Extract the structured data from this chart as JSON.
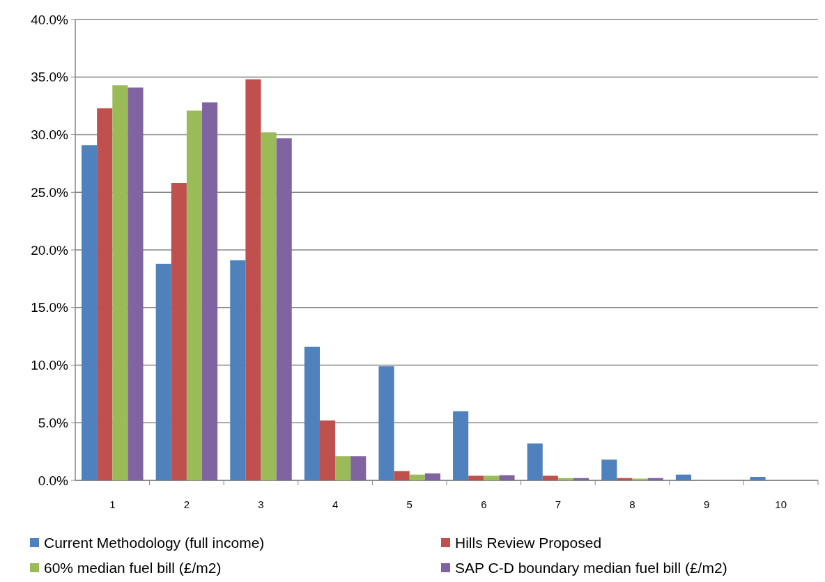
{
  "chart_data": {
    "type": "bar",
    "categories": [
      "1",
      "2",
      "3",
      "4",
      "5",
      "6",
      "7",
      "8",
      "9",
      "10"
    ],
    "series": [
      {
        "name": "Current Methodology (full income)",
        "color": "#4f81bd",
        "values": [
          29.1,
          18.8,
          19.1,
          11.6,
          9.9,
          6.0,
          3.2,
          1.8,
          0.5,
          0.3
        ]
      },
      {
        "name": "Hills Review Proposed",
        "color": "#c0504d",
        "values": [
          32.3,
          25.8,
          34.8,
          5.2,
          0.8,
          0.4,
          0.4,
          0.2,
          0,
          0
        ]
      },
      {
        "name": "60% median fuel bill (£/m2)",
        "color": "#9bbb59",
        "values": [
          34.3,
          32.1,
          30.2,
          2.1,
          0.5,
          0.4,
          0.2,
          0.15,
          0,
          0
        ]
      },
      {
        "name": "SAP C-D boundary median fuel bill (£/m2)",
        "color": "#8064a2",
        "values": [
          34.1,
          32.8,
          29.7,
          2.1,
          0.6,
          0.45,
          0.2,
          0.2,
          0,
          0
        ]
      }
    ],
    "ylim": [
      0,
      40
    ],
    "yticks": [
      {
        "value": 0,
        "label": "0.0%"
      },
      {
        "value": 5,
        "label": "5.0%"
      },
      {
        "value": 10,
        "label": "10.0%"
      },
      {
        "value": 15,
        "label": "15.0%"
      },
      {
        "value": 20,
        "label": "20.0%"
      },
      {
        "value": 25,
        "label": "25.0%"
      },
      {
        "value": 30,
        "label": "30.0%"
      },
      {
        "value": 35,
        "label": "35.0%"
      },
      {
        "value": 40,
        "label": "40.0%"
      }
    ],
    "grid": "y",
    "legend": "bottom"
  }
}
